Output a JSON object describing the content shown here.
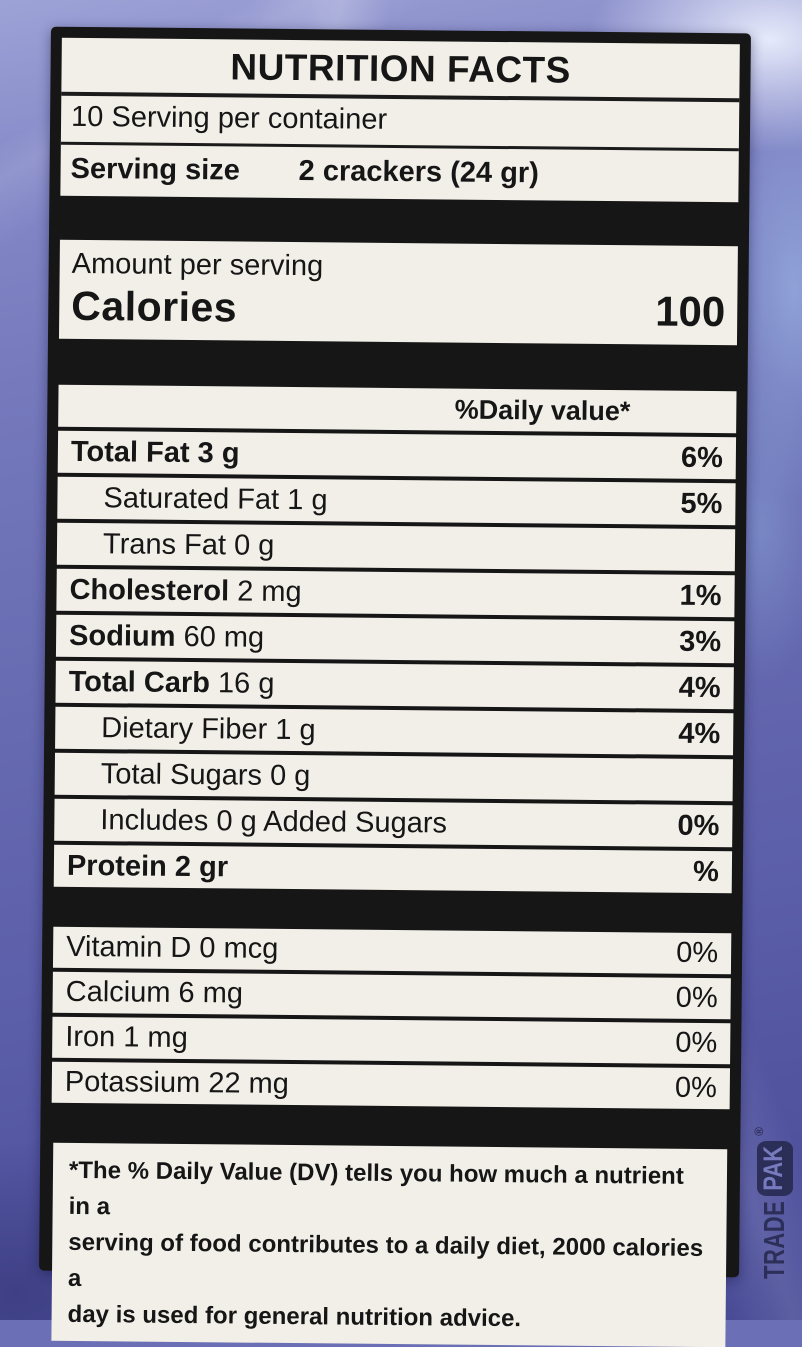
{
  "colors": {
    "bag_base": "#6b6fb5",
    "label_black": "#161616",
    "paper": "#f2efe8",
    "ink": "#161616",
    "stamp_ink": "#272a50"
  },
  "header": {
    "title": "NUTRITION FACTS",
    "servings_per_container": "10 Serving per container",
    "serving_size_label": "Serving size",
    "serving_size_value": "2 crackers (24 gr)"
  },
  "calories": {
    "amount_per_serving": "Amount per serving",
    "label": "Calories",
    "value": "100"
  },
  "daily_value_header": "%Daily value*",
  "nutrients": [
    {
      "bold": "Total Fat 3 g",
      "reg": "",
      "dv": "6%",
      "indent": false
    },
    {
      "bold": "",
      "reg": "Saturated Fat 1 g",
      "dv": "5%",
      "indent": true
    },
    {
      "bold": "",
      "reg": "Trans Fat 0 g",
      "dv": "",
      "indent": true
    },
    {
      "bold": "Cholesterol",
      "reg": " 2 mg",
      "dv": "1%",
      "indent": false
    },
    {
      "bold": "Sodium",
      "reg": " 60 mg",
      "dv": "3%",
      "indent": false
    },
    {
      "bold": "Total Carb",
      "reg": " 16 g",
      "dv": "4%",
      "indent": false
    },
    {
      "bold": "",
      "reg": "Dietary Fiber 1 g",
      "dv": "4%",
      "indent": true
    },
    {
      "bold": "",
      "reg": "Total Sugars 0 g",
      "dv": "",
      "indent": true
    },
    {
      "bold": "",
      "reg": "Includes 0 g Added Sugars",
      "dv": "0%",
      "indent": true
    },
    {
      "bold": "Protein 2 gr",
      "reg": "",
      "dv": "%",
      "indent": false
    }
  ],
  "micronutrients": [
    {
      "name": "Vitamin D 0 mcg",
      "dv": "0%"
    },
    {
      "name": "Calcium 6 mg",
      "dv": "0%"
    },
    {
      "name": "Iron 1 mg",
      "dv": "0%"
    },
    {
      "name": "Potassium 22 mg",
      "dv": "0%"
    }
  ],
  "footnote_lines": [
    "*The % Daily Value (DV) tells you how much a nutrient in a",
    "serving of food contributes to a daily diet, 2000 calories a",
    "day is used for general nutrition advice."
  ],
  "stamp": {
    "trade": "TRADE",
    "pak": "PAK",
    "reg_mark": "®"
  }
}
